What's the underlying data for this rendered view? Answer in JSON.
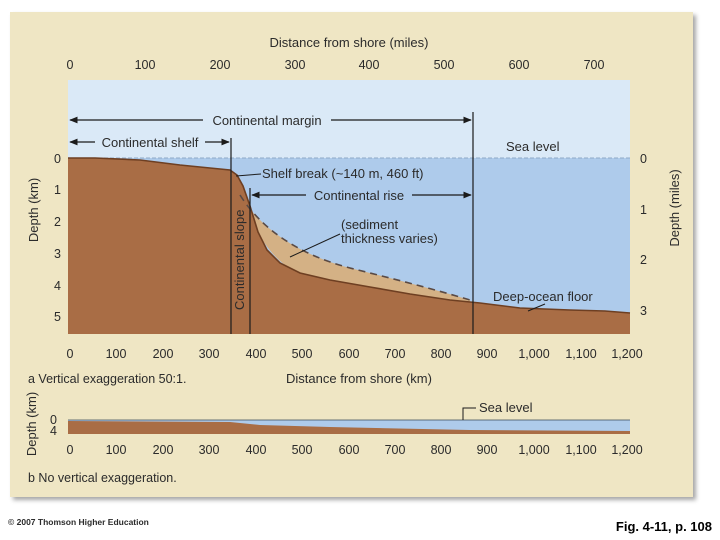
{
  "colors": {
    "panel": "#efe6c4",
    "sky": "#dae9f7",
    "water": "#aecbeb",
    "earth": "#a96d45",
    "earth_dark": "#6e3f22",
    "sediment": "#d4b185",
    "line": "#1b1b1b",
    "sea_level_line": "#8fa9c7"
  },
  "top_axis": {
    "title": "Distance from shore (miles)",
    "ticks": [
      "0",
      "100",
      "200",
      "300",
      "400",
      "500",
      "600",
      "700"
    ]
  },
  "left_axis": {
    "title": "Depth (km)",
    "ticks": [
      "0",
      "1",
      "2",
      "3",
      "4",
      "5"
    ]
  },
  "right_axis": {
    "title": "Depth (miles)",
    "ticks": [
      "0",
      "1",
      "2",
      "3"
    ]
  },
  "bottom_axis": {
    "title": "Distance from shore (km)",
    "ticks": [
      "0",
      "100",
      "200",
      "300",
      "400",
      "500",
      "600",
      "700",
      "800",
      "900",
      "1,000",
      "1,100",
      "1,200"
    ]
  },
  "labels": {
    "continental_margin": "Continental margin",
    "continental_shelf": "Continental shelf",
    "sea_level": "Sea level",
    "shelf_break": "Shelf break (~140 m, 460 ft)",
    "continental_rise": "Continental rise",
    "sediment_line1": "(sediment",
    "sediment_line2": "thickness varies)",
    "continental_slope": "Continental slope",
    "deep_ocean_floor": "Deep-ocean floor"
  },
  "panel_a_caption": "a Vertical exaggeration 50:1.",
  "panel_b": {
    "axis_title": "Depth (km)",
    "ticks": [
      "0",
      "4"
    ],
    "sea_level": "Sea level",
    "x_ticks": [
      "0",
      "100",
      "200",
      "300",
      "400",
      "500",
      "600",
      "700",
      "800",
      "900",
      "1,000",
      "1,100",
      "1,200"
    ],
    "caption": "b No vertical exaggeration."
  },
  "copyright": "© 2007 Thomson Higher Education",
  "fig_ref": "Fig. 4-11, p. 108"
}
